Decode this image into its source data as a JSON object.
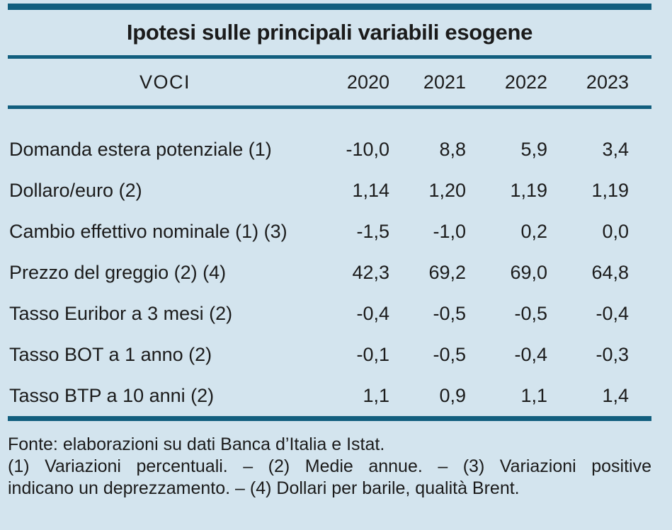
{
  "chart_data": {
    "type": "table",
    "title": "Ipotesi sulle principali variabili esogene",
    "header": {
      "label_column": "VOCI",
      "years": [
        "2020",
        "2021",
        "2022",
        "2023"
      ]
    },
    "rows": [
      {
        "label": "Domanda estera potenziale (1)",
        "values": [
          "-10,0",
          "8,8",
          "5,9",
          "3,4"
        ]
      },
      {
        "label": "Dollaro/euro (2)",
        "values": [
          "1,14",
          "1,20",
          "1,19",
          "1,19"
        ]
      },
      {
        "label": "Cambio effettivo nominale (1) (3)",
        "values": [
          "-1,5",
          "-1,0",
          "0,2",
          "0,0"
        ]
      },
      {
        "label": "Prezzo del greggio (2) (4)",
        "values": [
          "42,3",
          "69,2",
          "69,0",
          "64,8"
        ]
      },
      {
        "label": "Tasso Euribor a 3 mesi (2)",
        "values": [
          "-0,4",
          "-0,5",
          "-0,5",
          "-0,4"
        ]
      },
      {
        "label": "Tasso BOT a 1 anno (2)",
        "values": [
          "-0,1",
          "-0,5",
          "-0,4",
          "-0,3"
        ]
      },
      {
        "label": "Tasso BTP a 10 anni (2)",
        "values": [
          "1,1",
          "0,9",
          "1,1",
          "1,4"
        ]
      }
    ],
    "source_note": "Fonte: elaborazioni su dati Banca d’Italia e Istat.",
    "footnote_lines": [
      "(1) Variazioni percentuali. – (2) Medie annue. – (3) Variazioni positive",
      "indicano un deprezzamento. – (4) Dollari per barile, qualità Brent."
    ],
    "footnote_full": "(1) Variazioni percentuali. – (2) Medie annue. – (3) Variazioni positive indicano un deprezzamento. – (4) Dollari per barile, qualità Brent."
  },
  "colors": {
    "background": "#d3e4ee",
    "rule_teal": "#115e7e",
    "text": "#1b1b1b"
  }
}
